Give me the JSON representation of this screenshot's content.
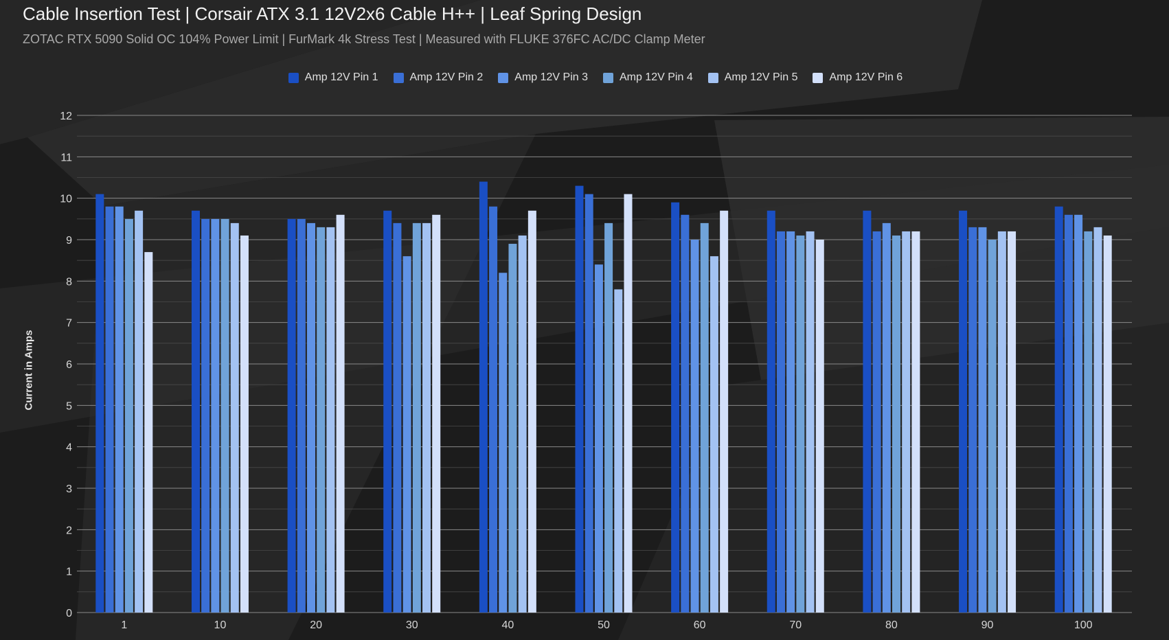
{
  "title": "Cable Insertion Test | Corsair ATX 3.1 12V2x6 Cable H++ | Leaf Spring Design",
  "subtitle": "ZOTAC RTX 5090 Solid OC 104% Power Limit | FurMark 4k Stress Test | Measured with FLUKE 376FC AC/DC Clamp Meter",
  "chart_data": {
    "type": "bar",
    "title": "Cable Insertion Test | Corsair ATX 3.1 12V2x6 Cable H++ | Leaf Spring Design",
    "subtitle": "ZOTAC RTX 5090 Solid OC 104% Power Limit | FurMark 4k Stress Test | Measured with FLUKE 376FC AC/DC Clamp Meter",
    "xlabel": "",
    "ylabel": "Current in Amps",
    "ylim": [
      0,
      12
    ],
    "yticks": [
      0,
      1,
      2,
      3,
      4,
      5,
      6,
      7,
      8,
      9,
      10,
      11,
      12
    ],
    "grid": true,
    "legend_position": "top-center",
    "categories": [
      "1",
      "10",
      "20",
      "30",
      "40",
      "50",
      "60",
      "70",
      "80",
      "90",
      "100"
    ],
    "series": [
      {
        "name": "Amp 12V Pin 1",
        "color": "#1a4fc4",
        "values": [
          10.1,
          9.7,
          9.5,
          9.7,
          10.4,
          10.3,
          9.9,
          9.7,
          9.7,
          9.7,
          9.8
        ]
      },
      {
        "name": "Amp 12V Pin 2",
        "color": "#3a6fd6",
        "values": [
          9.8,
          9.5,
          9.5,
          9.4,
          9.8,
          10.1,
          9.6,
          9.2,
          9.2,
          9.3,
          9.6
        ]
      },
      {
        "name": "Amp 12V Pin 3",
        "color": "#6093e6",
        "values": [
          9.8,
          9.5,
          9.4,
          8.6,
          8.2,
          8.4,
          9.0,
          9.2,
          9.4,
          9.3,
          9.6
        ]
      },
      {
        "name": "Amp 12V Pin 4",
        "color": "#70a3d9",
        "values": [
          9.5,
          9.5,
          9.3,
          9.4,
          8.9,
          9.4,
          9.4,
          9.1,
          9.1,
          9.0,
          9.2
        ]
      },
      {
        "name": "Amp 12V Pin 5",
        "color": "#a3c2f2",
        "values": [
          9.7,
          9.4,
          9.3,
          9.4,
          9.1,
          7.8,
          8.6,
          9.2,
          9.2,
          9.2,
          9.3
        ]
      },
      {
        "name": "Amp 12V Pin 6",
        "color": "#d3e0fa",
        "values": [
          8.7,
          9.1,
          9.6,
          9.6,
          9.7,
          10.1,
          9.7,
          9.0,
          9.2,
          9.2,
          9.1
        ]
      }
    ]
  }
}
